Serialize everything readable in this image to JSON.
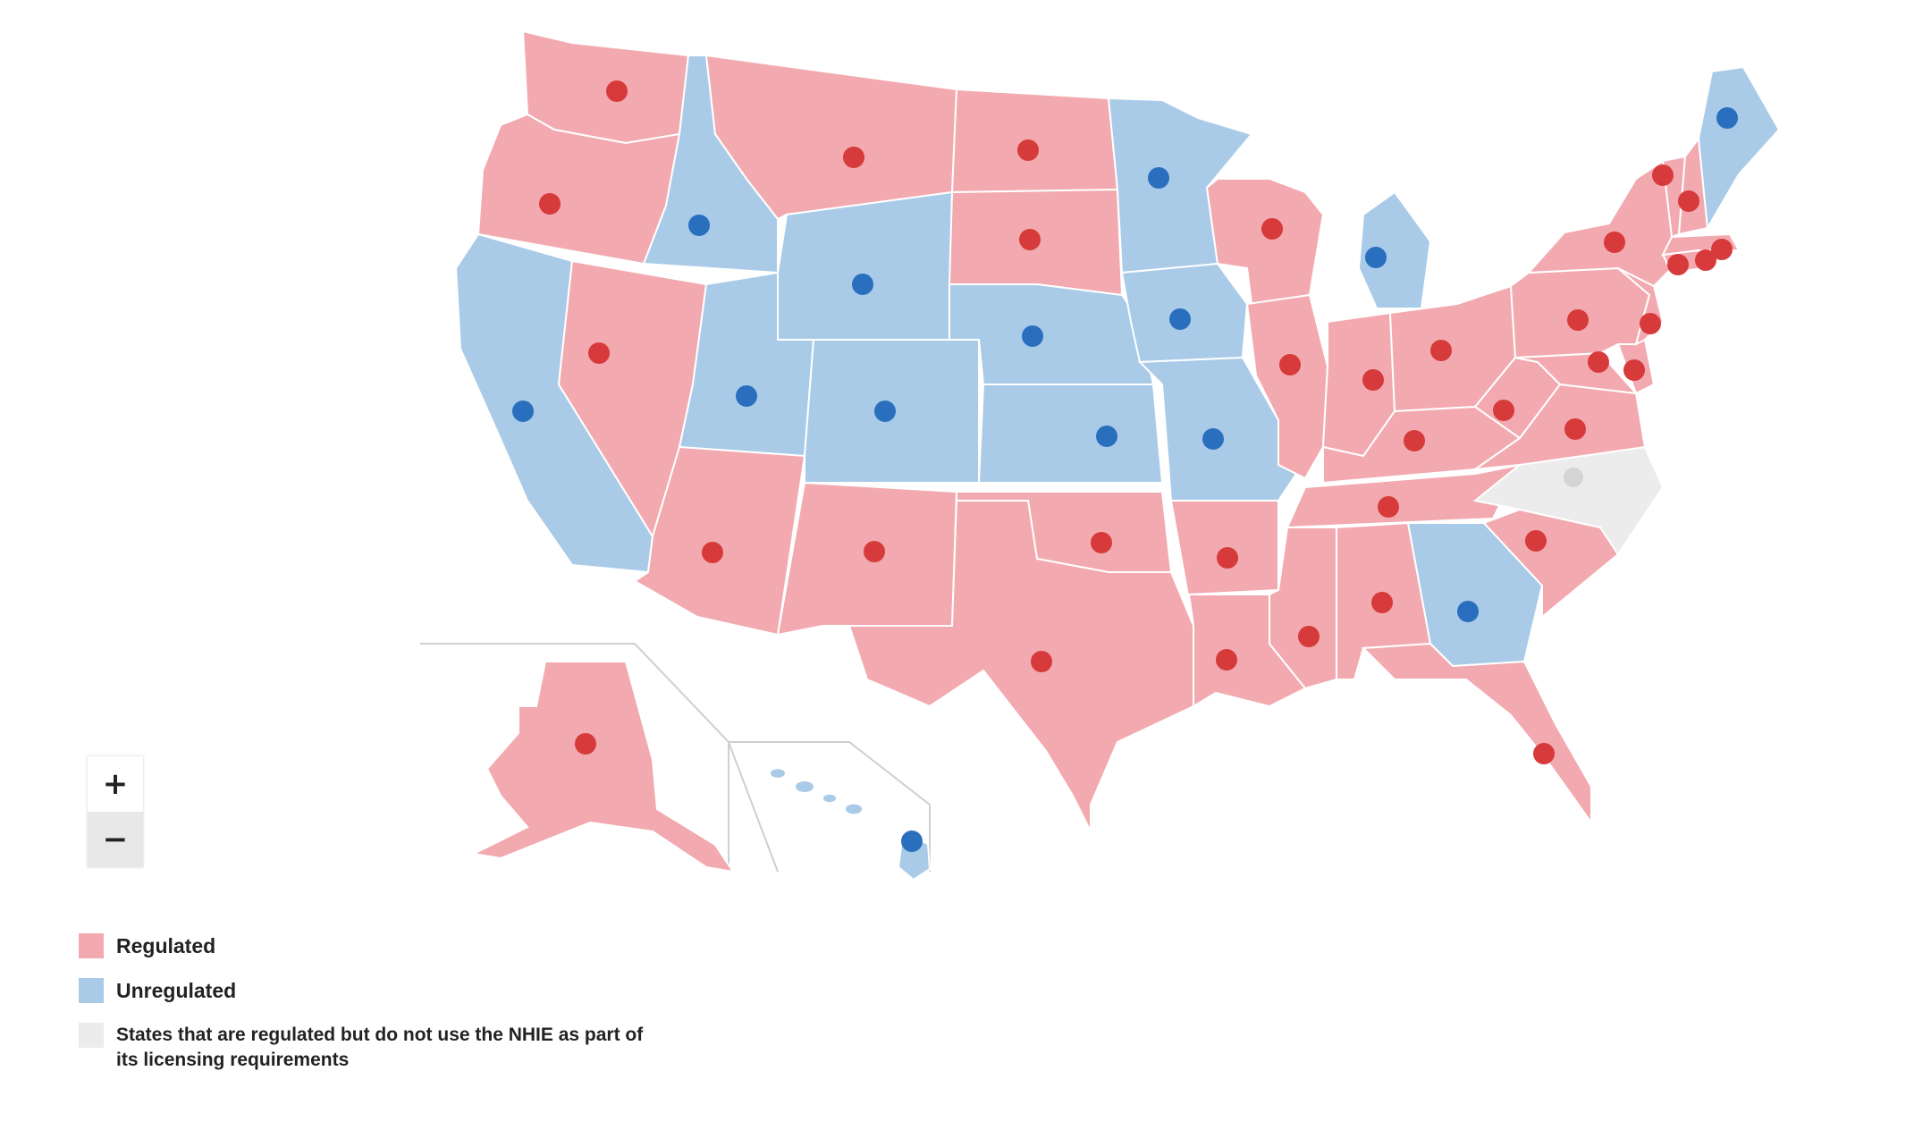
{
  "map": {
    "region": "United States",
    "colors": {
      "regulated": "#f2aab0",
      "unregulated": "#a9cbe8",
      "not_nhie": "#ececec",
      "border": "#ffffff",
      "regulated_dot": "#d63a3a",
      "unregulated_dot": "#2a6fbe",
      "not_nhie_dot": "#d4d4d4"
    },
    "states": [
      {
        "name": "Washington",
        "status": "regulated"
      },
      {
        "name": "Oregon",
        "status": "regulated"
      },
      {
        "name": "California",
        "status": "unregulated"
      },
      {
        "name": "Idaho",
        "status": "unregulated"
      },
      {
        "name": "Nevada",
        "status": "regulated"
      },
      {
        "name": "Montana",
        "status": "regulated"
      },
      {
        "name": "Wyoming",
        "status": "unregulated"
      },
      {
        "name": "Utah",
        "status": "unregulated"
      },
      {
        "name": "Arizona",
        "status": "regulated"
      },
      {
        "name": "Colorado",
        "status": "unregulated"
      },
      {
        "name": "New Mexico",
        "status": "regulated"
      },
      {
        "name": "North Dakota",
        "status": "regulated"
      },
      {
        "name": "South Dakota",
        "status": "regulated"
      },
      {
        "name": "Nebraska",
        "status": "unregulated"
      },
      {
        "name": "Kansas",
        "status": "unregulated"
      },
      {
        "name": "Oklahoma",
        "status": "regulated"
      },
      {
        "name": "Texas",
        "status": "regulated"
      },
      {
        "name": "Minnesota",
        "status": "unregulated"
      },
      {
        "name": "Iowa",
        "status": "unregulated"
      },
      {
        "name": "Missouri",
        "status": "unregulated"
      },
      {
        "name": "Arkansas",
        "status": "regulated"
      },
      {
        "name": "Louisiana",
        "status": "regulated"
      },
      {
        "name": "Wisconsin",
        "status": "regulated"
      },
      {
        "name": "Illinois",
        "status": "regulated"
      },
      {
        "name": "Michigan",
        "status": "unregulated"
      },
      {
        "name": "Indiana",
        "status": "regulated"
      },
      {
        "name": "Ohio",
        "status": "regulated"
      },
      {
        "name": "Kentucky",
        "status": "regulated"
      },
      {
        "name": "Tennessee",
        "status": "regulated"
      },
      {
        "name": "Mississippi",
        "status": "regulated"
      },
      {
        "name": "Alabama",
        "status": "regulated"
      },
      {
        "name": "Georgia",
        "status": "unregulated"
      },
      {
        "name": "Florida",
        "status": "regulated"
      },
      {
        "name": "South Carolina",
        "status": "regulated"
      },
      {
        "name": "North Carolina",
        "status": "not_nhie"
      },
      {
        "name": "Virginia",
        "status": "regulated"
      },
      {
        "name": "West Virginia",
        "status": "regulated"
      },
      {
        "name": "Maryland",
        "status": "regulated"
      },
      {
        "name": "Delaware",
        "status": "regulated"
      },
      {
        "name": "Pennsylvania",
        "status": "regulated"
      },
      {
        "name": "New Jersey",
        "status": "regulated"
      },
      {
        "name": "New York",
        "status": "regulated"
      },
      {
        "name": "Connecticut",
        "status": "regulated"
      },
      {
        "name": "Rhode Island",
        "status": "regulated"
      },
      {
        "name": "Massachusetts",
        "status": "regulated"
      },
      {
        "name": "Vermont",
        "status": "regulated"
      },
      {
        "name": "New Hampshire",
        "status": "regulated"
      },
      {
        "name": "Maine",
        "status": "unregulated"
      },
      {
        "name": "Alaska",
        "status": "regulated"
      },
      {
        "name": "Hawaii",
        "status": "unregulated"
      }
    ]
  },
  "zoom": {
    "plus_label": "+",
    "minus_label": "−"
  },
  "legend": {
    "regulated": "Regulated",
    "unregulated": "Unregulated",
    "not_nhie": "States that are regulated but do not use the NHIE as part of its licensing requirements"
  }
}
